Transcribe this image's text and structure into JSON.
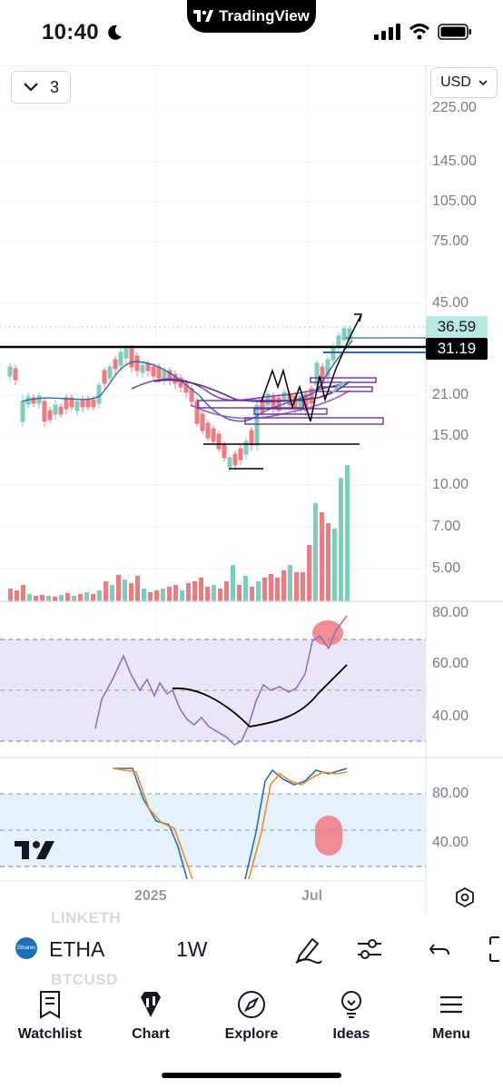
{
  "status": {
    "time": "10:40",
    "island_label": "TradingView"
  },
  "toolbar": {
    "period_value": "3",
    "currency": "USD"
  },
  "price_axis": {
    "labels": [
      "225.00",
      "145.00",
      "105.00",
      "75.00",
      "45.00",
      "21.00",
      "15.00",
      "10.00",
      "7.00",
      "5.00"
    ],
    "last_price": "36.59",
    "line_price": "31.19"
  },
  "rsi_axis": {
    "labels": [
      "80.00",
      "60.00",
      "40.00"
    ]
  },
  "stoch_axis": {
    "labels": [
      "80.00",
      "40.00"
    ]
  },
  "time_axis": {
    "labels": [
      "2025",
      "Jul"
    ]
  },
  "ghost_rows": [
    "LINKETH",
    "BTCUSD"
  ],
  "symbol": {
    "logo_text": "iShares",
    "ticker": "ETHA",
    "interval": "1W"
  },
  "tabs": [
    {
      "label": "Watchlist",
      "icon": "watchlist-icon"
    },
    {
      "label": "Chart",
      "icon": "chart-icon"
    },
    {
      "label": "Explore",
      "icon": "compass-icon"
    },
    {
      "label": "Ideas",
      "icon": "lightbulb-icon"
    },
    {
      "label": "Menu",
      "icon": "menu-icon"
    }
  ],
  "chart_data": {
    "type": "candlestick",
    "interval": "1W",
    "last_price": 36.59,
    "horizontal_line": 31.19,
    "price_scale": "log",
    "price_ticks": [
      225,
      145,
      105,
      75,
      45,
      21,
      15,
      10,
      7,
      5
    ],
    "time_labels": [
      "2025",
      "Jul"
    ],
    "rsi_ticks": [
      80,
      60,
      40
    ],
    "stoch_ticks": [
      80,
      40
    ],
    "colors": {
      "up": "#7dcdbb",
      "down": "#ef7a80",
      "line": "#000000",
      "ma": "#7b3fb5",
      "rsi": "#8a6bbf"
    }
  }
}
